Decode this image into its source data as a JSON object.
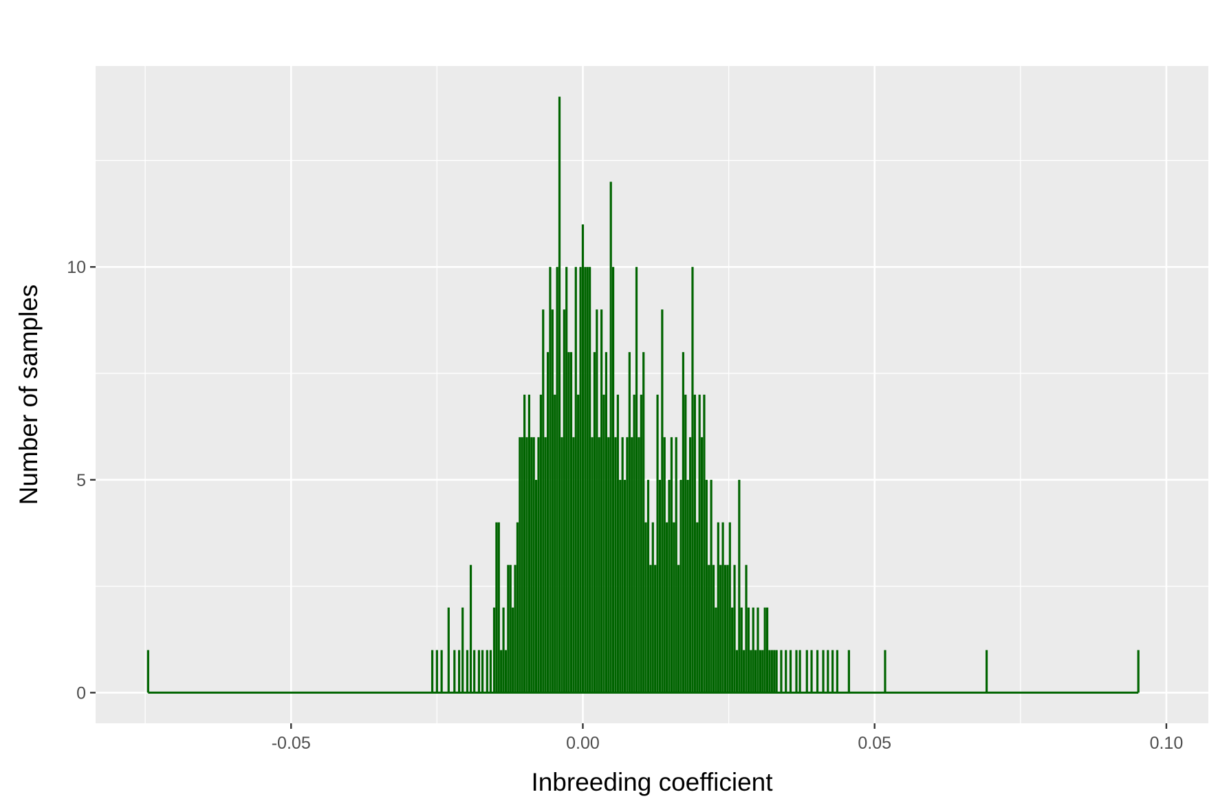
{
  "chart_data": {
    "type": "histogram",
    "title": "",
    "xlabel": "Inbreeding coefficient",
    "ylabel": "Number of samples",
    "xlim": [
      -0.0835,
      0.1072
    ],
    "ylim": [
      -0.72,
      14.72
    ],
    "x_ticks": [
      -0.05,
      0.0,
      0.05,
      0.1
    ],
    "x_tick_labels": [
      "-0.05",
      "0.00",
      "0.05",
      "0.10"
    ],
    "y_ticks": [
      0,
      5,
      10
    ],
    "y_tick_labels": [
      "0",
      "5",
      "10"
    ],
    "grid": true,
    "series": [
      {
        "color": "#006400",
        "points": [
          {
            "x": -0.0745,
            "y": 1
          },
          {
            "x": -0.0258,
            "y": 1
          },
          {
            "x": -0.025,
            "y": 1
          },
          {
            "x": -0.0242,
            "y": 1
          },
          {
            "x": -0.023,
            "y": 2
          },
          {
            "x": -0.022,
            "y": 1
          },
          {
            "x": -0.0212,
            "y": 1
          },
          {
            "x": -0.0206,
            "y": 2
          },
          {
            "x": -0.0198,
            "y": 1
          },
          {
            "x": -0.0192,
            "y": 3
          },
          {
            "x": -0.0186,
            "y": 1
          },
          {
            "x": -0.0178,
            "y": 1
          },
          {
            "x": -0.0172,
            "y": 1
          },
          {
            "x": -0.0164,
            "y": 1
          },
          {
            "x": -0.0158,
            "y": 1
          },
          {
            "x": -0.0152,
            "y": 2
          },
          {
            "x": -0.0148,
            "y": 4
          },
          {
            "x": -0.0144,
            "y": 4
          },
          {
            "x": -0.014,
            "y": 1
          },
          {
            "x": -0.0136,
            "y": 2
          },
          {
            "x": -0.0132,
            "y": 1
          },
          {
            "x": -0.0128,
            "y": 3
          },
          {
            "x": -0.0124,
            "y": 3
          },
          {
            "x": -0.012,
            "y": 2
          },
          {
            "x": -0.0116,
            "y": 3
          },
          {
            "x": -0.0112,
            "y": 4
          },
          {
            "x": -0.0108,
            "y": 6
          },
          {
            "x": -0.0104,
            "y": 6
          },
          {
            "x": -0.01,
            "y": 7
          },
          {
            "x": -0.0096,
            "y": 6
          },
          {
            "x": -0.0092,
            "y": 7
          },
          {
            "x": -0.0088,
            "y": 6
          },
          {
            "x": -0.0084,
            "y": 6
          },
          {
            "x": -0.008,
            "y": 5
          },
          {
            "x": -0.0076,
            "y": 6
          },
          {
            "x": -0.0072,
            "y": 7
          },
          {
            "x": -0.0068,
            "y": 9
          },
          {
            "x": -0.0064,
            "y": 6
          },
          {
            "x": -0.006,
            "y": 8
          },
          {
            "x": -0.0056,
            "y": 10
          },
          {
            "x": -0.0052,
            "y": 9
          },
          {
            "x": -0.0048,
            "y": 7
          },
          {
            "x": -0.0044,
            "y": 10
          },
          {
            "x": -0.004,
            "y": 14
          },
          {
            "x": -0.0036,
            "y": 6
          },
          {
            "x": -0.0032,
            "y": 9
          },
          {
            "x": -0.0028,
            "y": 10
          },
          {
            "x": -0.0024,
            "y": 8
          },
          {
            "x": -0.002,
            "y": 8
          },
          {
            "x": -0.0016,
            "y": 6
          },
          {
            "x": -0.0012,
            "y": 10
          },
          {
            "x": -0.0008,
            "y": 7
          },
          {
            "x": -0.0004,
            "y": 10
          },
          {
            "x": 0.0,
            "y": 11
          },
          {
            "x": 0.0004,
            "y": 10
          },
          {
            "x": 0.0008,
            "y": 10
          },
          {
            "x": 0.0012,
            "y": 10
          },
          {
            "x": 0.0016,
            "y": 6
          },
          {
            "x": 0.002,
            "y": 8
          },
          {
            "x": 0.0024,
            "y": 9
          },
          {
            "x": 0.0028,
            "y": 6
          },
          {
            "x": 0.0032,
            "y": 9
          },
          {
            "x": 0.0036,
            "y": 7
          },
          {
            "x": 0.004,
            "y": 8
          },
          {
            "x": 0.0044,
            "y": 6
          },
          {
            "x": 0.0048,
            "y": 12
          },
          {
            "x": 0.0052,
            "y": 10
          },
          {
            "x": 0.0056,
            "y": 6
          },
          {
            "x": 0.006,
            "y": 7
          },
          {
            "x": 0.0064,
            "y": 5
          },
          {
            "x": 0.0068,
            "y": 6
          },
          {
            "x": 0.0072,
            "y": 5
          },
          {
            "x": 0.0076,
            "y": 6
          },
          {
            "x": 0.008,
            "y": 8
          },
          {
            "x": 0.0084,
            "y": 6
          },
          {
            "x": 0.0088,
            "y": 7
          },
          {
            "x": 0.0092,
            "y": 10
          },
          {
            "x": 0.0096,
            "y": 6
          },
          {
            "x": 0.01,
            "y": 7
          },
          {
            "x": 0.0104,
            "y": 8
          },
          {
            "x": 0.0108,
            "y": 4
          },
          {
            "x": 0.0112,
            "y": 5
          },
          {
            "x": 0.0116,
            "y": 3
          },
          {
            "x": 0.012,
            "y": 4
          },
          {
            "x": 0.0124,
            "y": 3
          },
          {
            "x": 0.0128,
            "y": 7
          },
          {
            "x": 0.0132,
            "y": 5
          },
          {
            "x": 0.0136,
            "y": 9
          },
          {
            "x": 0.014,
            "y": 6
          },
          {
            "x": 0.0144,
            "y": 4
          },
          {
            "x": 0.0148,
            "y": 5
          },
          {
            "x": 0.0152,
            "y": 6
          },
          {
            "x": 0.0156,
            "y": 4
          },
          {
            "x": 0.016,
            "y": 6
          },
          {
            "x": 0.0164,
            "y": 3
          },
          {
            "x": 0.0168,
            "y": 5
          },
          {
            "x": 0.0172,
            "y": 8
          },
          {
            "x": 0.0176,
            "y": 7
          },
          {
            "x": 0.018,
            "y": 5
          },
          {
            "x": 0.0184,
            "y": 6
          },
          {
            "x": 0.0188,
            "y": 10
          },
          {
            "x": 0.0192,
            "y": 7
          },
          {
            "x": 0.0196,
            "y": 4
          },
          {
            "x": 0.02,
            "y": 7
          },
          {
            "x": 0.0204,
            "y": 6
          },
          {
            "x": 0.0208,
            "y": 7
          },
          {
            "x": 0.0212,
            "y": 5
          },
          {
            "x": 0.0216,
            "y": 3
          },
          {
            "x": 0.022,
            "y": 5
          },
          {
            "x": 0.0224,
            "y": 3
          },
          {
            "x": 0.0228,
            "y": 2
          },
          {
            "x": 0.0232,
            "y": 4
          },
          {
            "x": 0.0236,
            "y": 3
          },
          {
            "x": 0.024,
            "y": 4
          },
          {
            "x": 0.0244,
            "y": 3
          },
          {
            "x": 0.0248,
            "y": 3
          },
          {
            "x": 0.0252,
            "y": 4
          },
          {
            "x": 0.0256,
            "y": 2
          },
          {
            "x": 0.026,
            "y": 3
          },
          {
            "x": 0.0264,
            "y": 1
          },
          {
            "x": 0.0268,
            "y": 5
          },
          {
            "x": 0.0272,
            "y": 2
          },
          {
            "x": 0.0276,
            "y": 1
          },
          {
            "x": 0.028,
            "y": 3
          },
          {
            "x": 0.0284,
            "y": 2
          },
          {
            "x": 0.0288,
            "y": 1
          },
          {
            "x": 0.0292,
            "y": 2
          },
          {
            "x": 0.0296,
            "y": 1
          },
          {
            "x": 0.03,
            "y": 2
          },
          {
            "x": 0.0304,
            "y": 1
          },
          {
            "x": 0.0308,
            "y": 1
          },
          {
            "x": 0.0312,
            "y": 2
          },
          {
            "x": 0.0316,
            "y": 2
          },
          {
            "x": 0.032,
            "y": 1
          },
          {
            "x": 0.0324,
            "y": 1
          },
          {
            "x": 0.0328,
            "y": 1
          },
          {
            "x": 0.0332,
            "y": 1
          },
          {
            "x": 0.034,
            "y": 1
          },
          {
            "x": 0.0348,
            "y": 1
          },
          {
            "x": 0.0356,
            "y": 1
          },
          {
            "x": 0.0366,
            "y": 1
          },
          {
            "x": 0.0372,
            "y": 1
          },
          {
            "x": 0.0384,
            "y": 1
          },
          {
            "x": 0.0392,
            "y": 1
          },
          {
            "x": 0.0402,
            "y": 1
          },
          {
            "x": 0.0412,
            "y": 1
          },
          {
            "x": 0.042,
            "y": 1
          },
          {
            "x": 0.0428,
            "y": 1
          },
          {
            "x": 0.0436,
            "y": 1
          },
          {
            "x": 0.0456,
            "y": 1
          },
          {
            "x": 0.0518,
            "y": 1
          },
          {
            "x": 0.0692,
            "y": 1
          },
          {
            "x": 0.0952,
            "y": 1
          }
        ]
      }
    ]
  }
}
